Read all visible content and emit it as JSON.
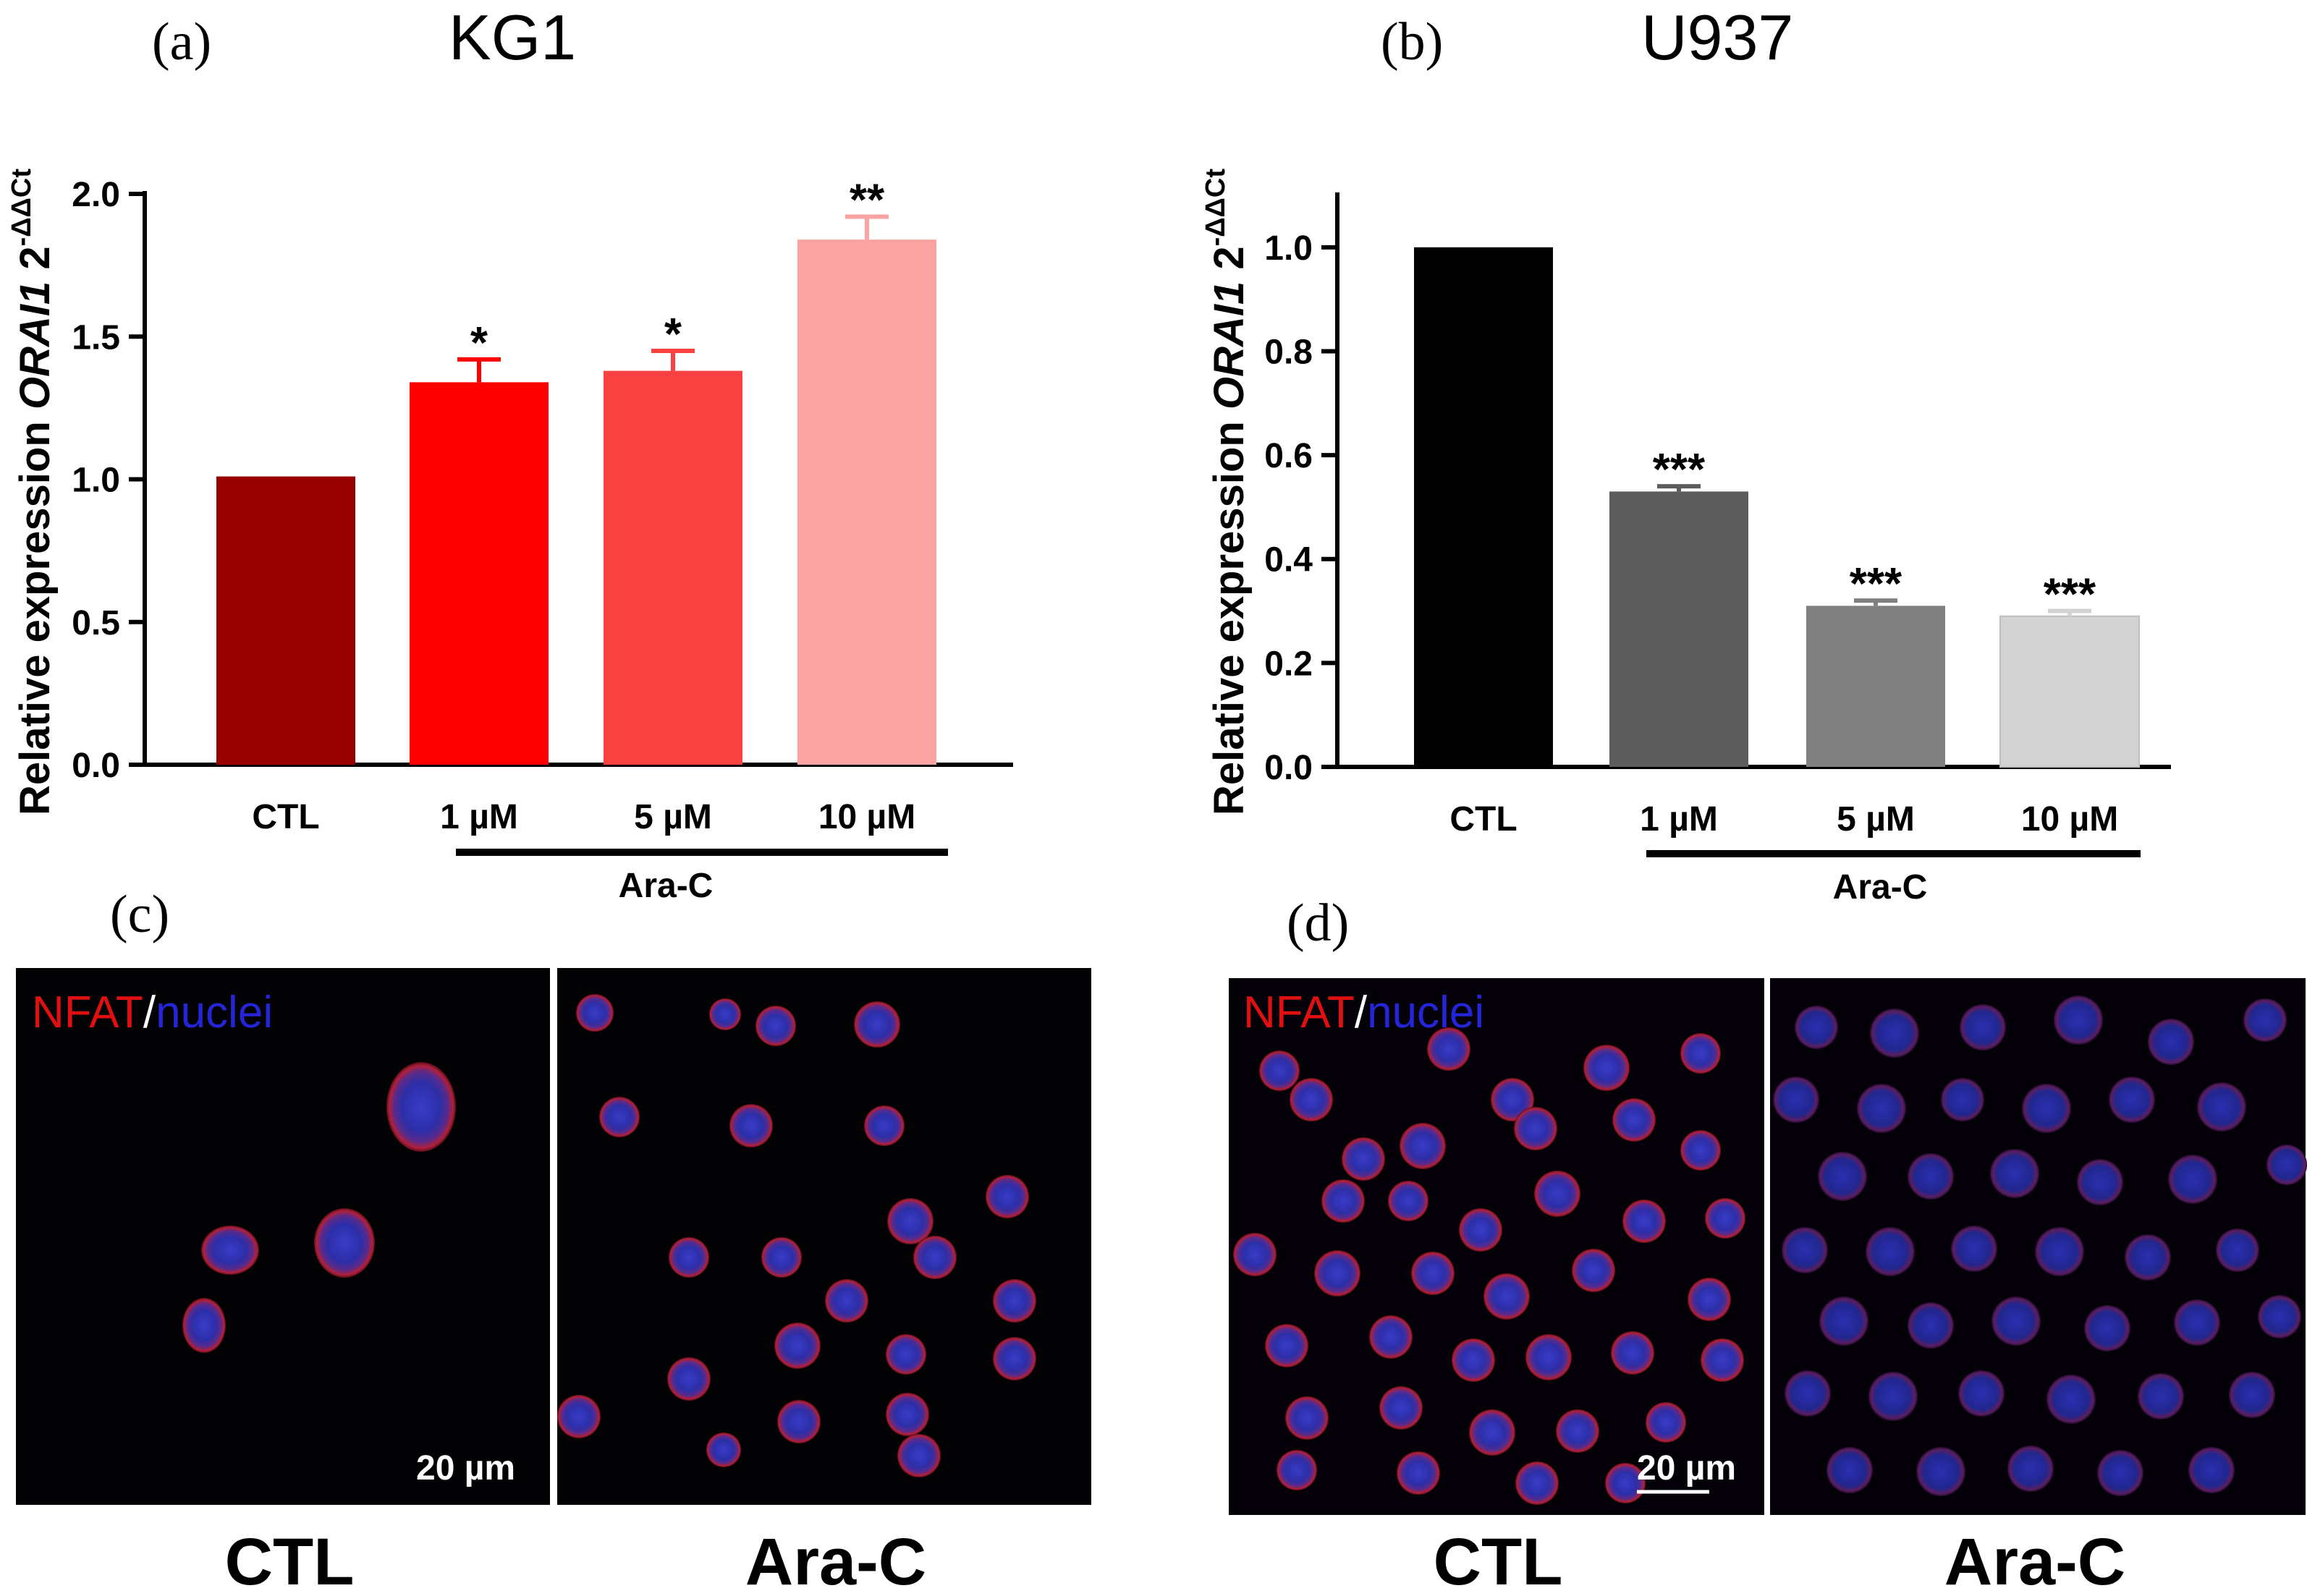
{
  "chart_data": [
    {
      "type": "bar",
      "panel_label": "(a)",
      "title": "KG1",
      "ylabel_prefix": "Relative expression ",
      "ylabel_gene": "ORAI1",
      "ylabel_suffix": " 2",
      "ylabel_exponent": "-ΔΔCt",
      "ylim": [
        0,
        2.0
      ],
      "yticks": [
        "0.0",
        "0.5",
        "1.0",
        "1.5",
        "2.0"
      ],
      "categories": [
        "CTL",
        "1 µM",
        "5 µM",
        "10 µM"
      ],
      "values": [
        1.01,
        1.34,
        1.38,
        1.84
      ],
      "errors": [
        0,
        0.08,
        0.07,
        0.08
      ],
      "significance": [
        "",
        "*",
        "*",
        "**"
      ],
      "colors": [
        "#990000",
        "#ff0000",
        "#fa4141",
        "#fba3a3"
      ],
      "treatment_label": "Ara-C"
    },
    {
      "type": "bar",
      "panel_label": "(b)",
      "title": "U937",
      "ylabel_prefix": "Relative expression ",
      "ylabel_gene": "ORAI1",
      "ylabel_suffix": " 2",
      "ylabel_exponent": "-ΔΔCt",
      "ylim": [
        0,
        1.1
      ],
      "yticks": [
        "0.0",
        "0.2",
        "0.4",
        "0.6",
        "0.8",
        "1.0"
      ],
      "categories": [
        "CTL",
        "1 µM",
        "5 µM",
        "10 µM"
      ],
      "values": [
        1.0,
        0.53,
        0.31,
        0.29
      ],
      "errors": [
        0,
        0.01,
        0.01,
        0.01
      ],
      "significance": [
        "",
        "***",
        "***",
        "***"
      ],
      "colors": [
        "#000000",
        "#5d5d5d",
        "#808080",
        "#d3d3d3"
      ],
      "treatment_label": "Ara-C"
    }
  ],
  "micrographs": {
    "c": {
      "panel_label": "(c)",
      "stain_red": "NFAT",
      "stain_sep": "/",
      "stain_blue": "nuclei",
      "scale_bar": "20 µm",
      "left_caption": "CTL",
      "right_caption": "Ara-C"
    },
    "d": {
      "panel_label": "(d)",
      "stain_red": "NFAT",
      "stain_sep": "/",
      "stain_blue": "nuclei",
      "scale_bar": "20 µm",
      "left_caption": "CTL",
      "right_caption": "Ara-C"
    }
  }
}
